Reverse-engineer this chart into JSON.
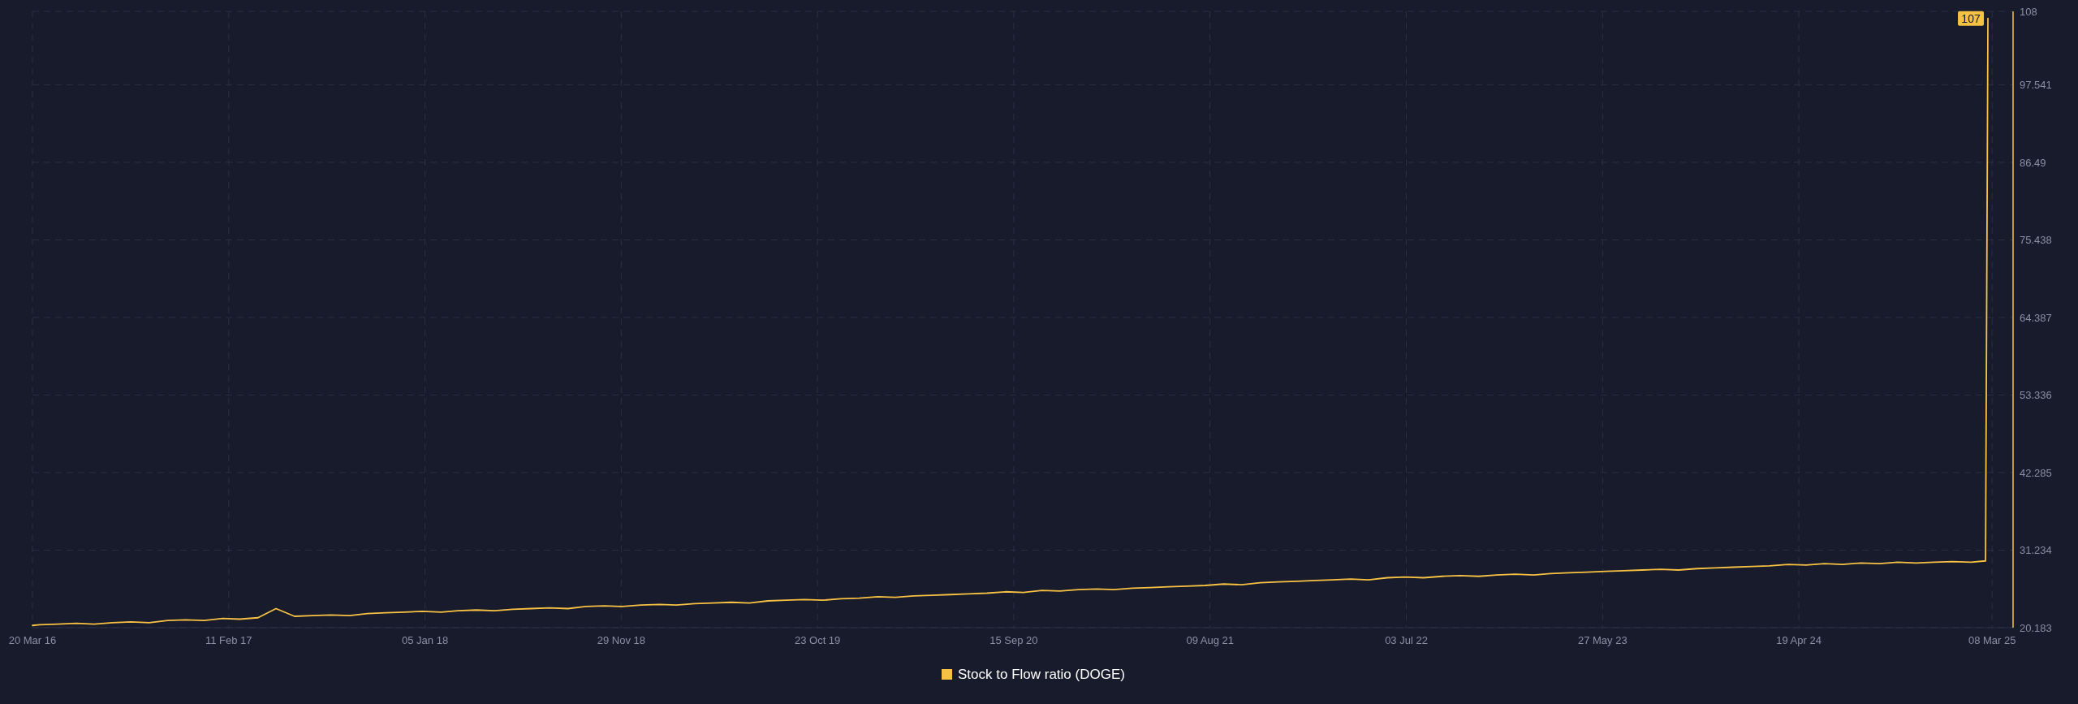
{
  "chart_data": {
    "type": "line",
    "xlim": [
      "2016-03-20",
      "2025-04-12"
    ],
    "ylim": [
      20.183,
      108
    ],
    "xticks": [
      {
        "value": "2016-03-20",
        "label": "20 Mar 16"
      },
      {
        "value": "2017-02-11",
        "label": "11 Feb 17"
      },
      {
        "value": "2018-01-05",
        "label": "05 Jan 18"
      },
      {
        "value": "2018-11-29",
        "label": "29 Nov 18"
      },
      {
        "value": "2019-10-23",
        "label": "23 Oct 19"
      },
      {
        "value": "2020-09-15",
        "label": "15 Sep 20"
      },
      {
        "value": "2021-08-09",
        "label": "09 Aug 21"
      },
      {
        "value": "2022-07-03",
        "label": "03 Jul 22"
      },
      {
        "value": "2023-05-27",
        "label": "27 May 23"
      },
      {
        "value": "2024-04-19",
        "label": "19 Apr 24"
      },
      {
        "value": "2025-03-08",
        "label": "08 Mar 25"
      }
    ],
    "yticks": [
      20.183,
      31.234,
      42.285,
      53.336,
      64.387,
      75.438,
      86.49,
      97.541,
      108
    ],
    "grid": true,
    "legend": "bottom",
    "x": [
      "2016-03-20",
      "2016-04",
      "2016-05",
      "2016-06",
      "2016-07",
      "2016-08",
      "2016-09",
      "2016-10",
      "2016-11",
      "2016-12",
      "2017-01",
      "2017-02",
      "2017-03",
      "2017-04",
      "2017-05",
      "2017-06",
      "2017-07",
      "2017-08",
      "2017-09",
      "2017-10",
      "2017-11",
      "2017-12",
      "2018-01",
      "2018-02",
      "2018-03",
      "2018-04",
      "2018-05",
      "2018-06",
      "2018-07",
      "2018-08",
      "2018-09",
      "2018-10",
      "2018-11",
      "2018-12",
      "2019-01",
      "2019-02",
      "2019-03",
      "2019-04",
      "2019-05",
      "2019-06",
      "2019-07",
      "2019-08",
      "2019-09",
      "2019-10",
      "2019-11",
      "2019-12",
      "2020-01",
      "2020-02",
      "2020-03",
      "2020-04",
      "2020-05",
      "2020-06",
      "2020-07",
      "2020-08",
      "2020-09",
      "2020-10",
      "2020-11",
      "2020-12",
      "2021-01",
      "2021-02",
      "2021-03",
      "2021-04",
      "2021-05",
      "2021-06",
      "2021-07",
      "2021-08",
      "2021-09",
      "2021-10",
      "2021-11",
      "2021-12",
      "2022-01",
      "2022-02",
      "2022-03",
      "2022-04",
      "2022-05",
      "2022-06",
      "2022-07",
      "2022-08",
      "2022-09",
      "2022-10",
      "2022-11",
      "2022-12",
      "2023-01",
      "2023-02",
      "2023-03",
      "2023-04",
      "2023-05",
      "2023-06",
      "2023-07",
      "2023-08",
      "2023-09",
      "2023-10",
      "2023-11",
      "2023-12",
      "2024-01",
      "2024-02",
      "2024-03",
      "2024-04",
      "2024-05",
      "2024-06",
      "2024-07",
      "2024-08",
      "2024-09",
      "2024-10",
      "2024-11",
      "2024-12",
      "2025-01",
      "2025-02",
      "2025-02-25",
      "2025-03-01"
    ],
    "series": [
      {
        "name": "Stock to Flow ratio (DOGE)",
        "color": "#f7c244",
        "values": [
          20.5,
          20.6,
          20.7,
          20.8,
          20.7,
          20.9,
          21.0,
          20.9,
          21.2,
          21.3,
          21.2,
          21.5,
          21.4,
          21.6,
          22.9,
          21.8,
          21.9,
          22.0,
          21.9,
          22.2,
          22.3,
          22.4,
          22.5,
          22.4,
          22.6,
          22.7,
          22.6,
          22.8,
          22.9,
          23.0,
          22.9,
          23.2,
          23.3,
          23.2,
          23.4,
          23.5,
          23.4,
          23.6,
          23.7,
          23.8,
          23.7,
          24.0,
          24.1,
          24.2,
          24.1,
          24.3,
          24.4,
          24.6,
          24.5,
          24.7,
          24.8,
          24.9,
          25.0,
          25.1,
          25.3,
          25.2,
          25.5,
          25.4,
          25.6,
          25.7,
          25.6,
          25.8,
          25.9,
          26.0,
          26.1,
          26.2,
          26.4,
          26.3,
          26.6,
          26.7,
          26.8,
          26.9,
          27.0,
          27.1,
          27.0,
          27.3,
          27.4,
          27.3,
          27.5,
          27.6,
          27.5,
          27.7,
          27.8,
          27.7,
          27.9,
          28.0,
          28.1,
          28.2,
          28.3,
          28.4,
          28.5,
          28.4,
          28.6,
          28.7,
          28.8,
          28.9,
          29.0,
          29.2,
          29.1,
          29.3,
          29.2,
          29.4,
          29.3,
          29.5,
          29.4,
          29.5,
          29.6,
          29.5,
          29.7,
          107
        ]
      }
    ],
    "annotations": [
      {
        "text": "107",
        "x": "2025-03-01",
        "y": 107
      }
    ]
  }
}
